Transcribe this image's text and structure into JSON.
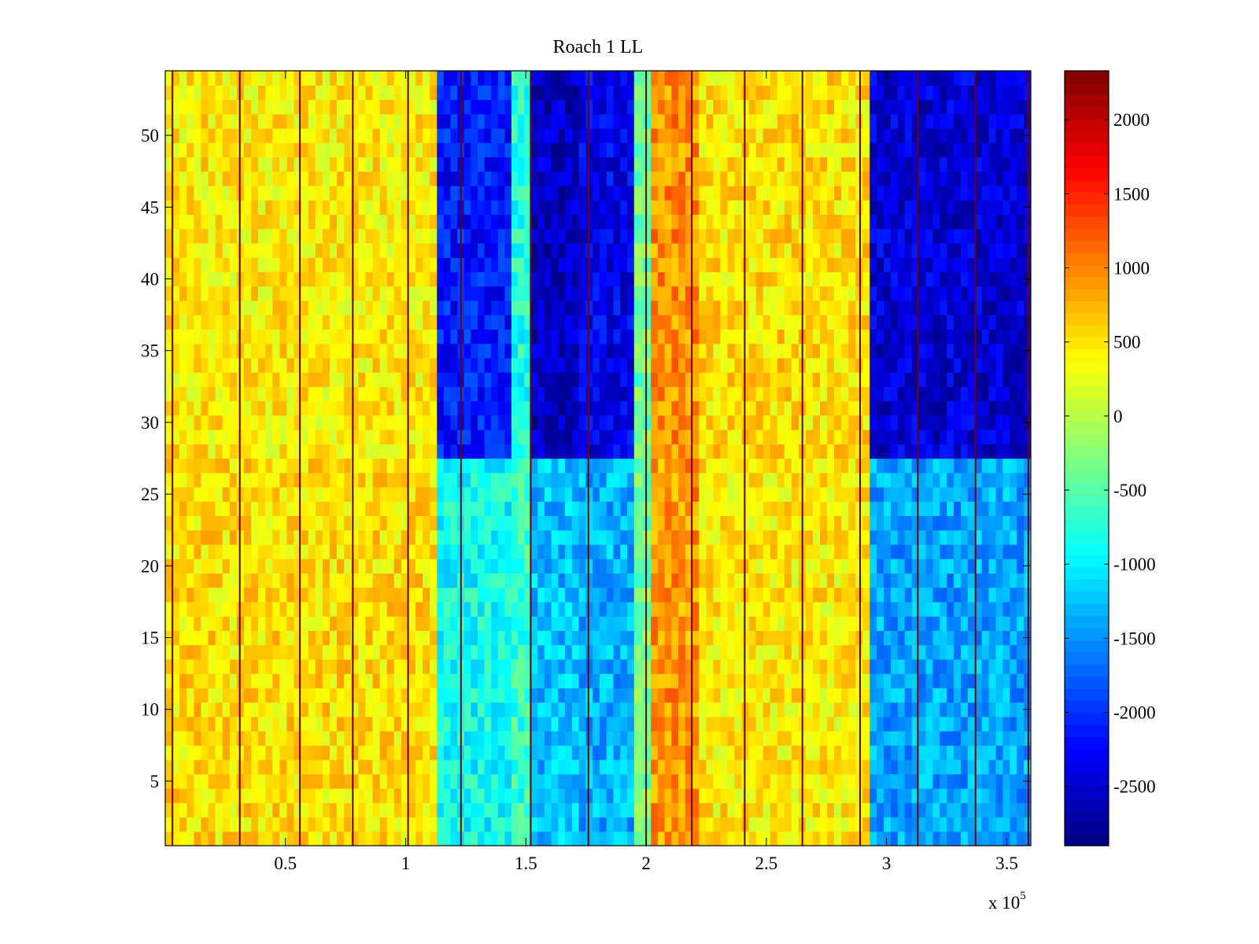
{
  "chart_data": {
    "type": "heatmap",
    "title": "Roach 1 LL",
    "xlabel": "",
    "ylabel": "",
    "x_multiplier_label": "x 10",
    "x_multiplier_exponent": "5",
    "xlim": [
      0,
      3.6
    ],
    "ylim": [
      0.5,
      54.5
    ],
    "x_ticks": [
      0.5,
      1,
      1.5,
      2,
      2.5,
      3,
      3.5
    ],
    "x_tick_labels": [
      "0.5",
      "1",
      "1.5",
      "2",
      "2.5",
      "3",
      "3.5"
    ],
    "y_ticks": [
      5,
      10,
      15,
      20,
      25,
      30,
      35,
      40,
      45,
      50
    ],
    "y_tick_labels": [
      "5",
      "10",
      "15",
      "20",
      "25",
      "30",
      "35",
      "40",
      "45",
      "50"
    ],
    "colorbar": {
      "colormap": "jet",
      "clim": [
        -2900,
        2330
      ],
      "ticks": [
        -2500,
        -2000,
        -1500,
        -1000,
        -500,
        0,
        500,
        1000,
        1500,
        2000
      ],
      "tick_labels": [
        "-2500",
        "-2000",
        "-1500",
        "-1000",
        "-500",
        "0",
        "500",
        "1000",
        "1500",
        "2000"
      ]
    },
    "rows": 54,
    "column_blocks": [
      {
        "x_start": 0.0,
        "x_end": 1.13,
        "value_upper": 450,
        "value_lower": 520
      },
      {
        "x_start": 1.13,
        "x_end": 1.44,
        "value_upper": -2150,
        "value_lower": -900
      },
      {
        "x_start": 1.44,
        "x_end": 1.52,
        "value_upper": -800,
        "value_lower": -700
      },
      {
        "x_start": 1.52,
        "x_end": 1.72,
        "value_upper": -2550,
        "value_lower": -1250
      },
      {
        "x_start": 1.72,
        "x_end": 1.95,
        "value_upper": -2350,
        "value_lower": -1350
      },
      {
        "x_start": 1.95,
        "x_end": 2.02,
        "value_upper": -400,
        "value_lower": -350
      },
      {
        "x_start": 2.02,
        "x_end": 2.22,
        "value_upper": 950,
        "value_lower": 900
      },
      {
        "x_start": 2.22,
        "x_end": 2.93,
        "value_upper": 520,
        "value_lower": 450
      },
      {
        "x_start": 2.93,
        "x_end": 3.6,
        "value_upper": -2450,
        "value_lower": -1400
      }
    ],
    "dark_vertical_line_x": [
      0.03,
      0.31,
      0.56,
      0.78,
      1.01,
      1.23,
      1.52,
      1.76,
      2.0,
      2.19,
      2.41,
      2.65,
      2.89,
      3.13,
      3.37,
      3.59
    ]
  }
}
